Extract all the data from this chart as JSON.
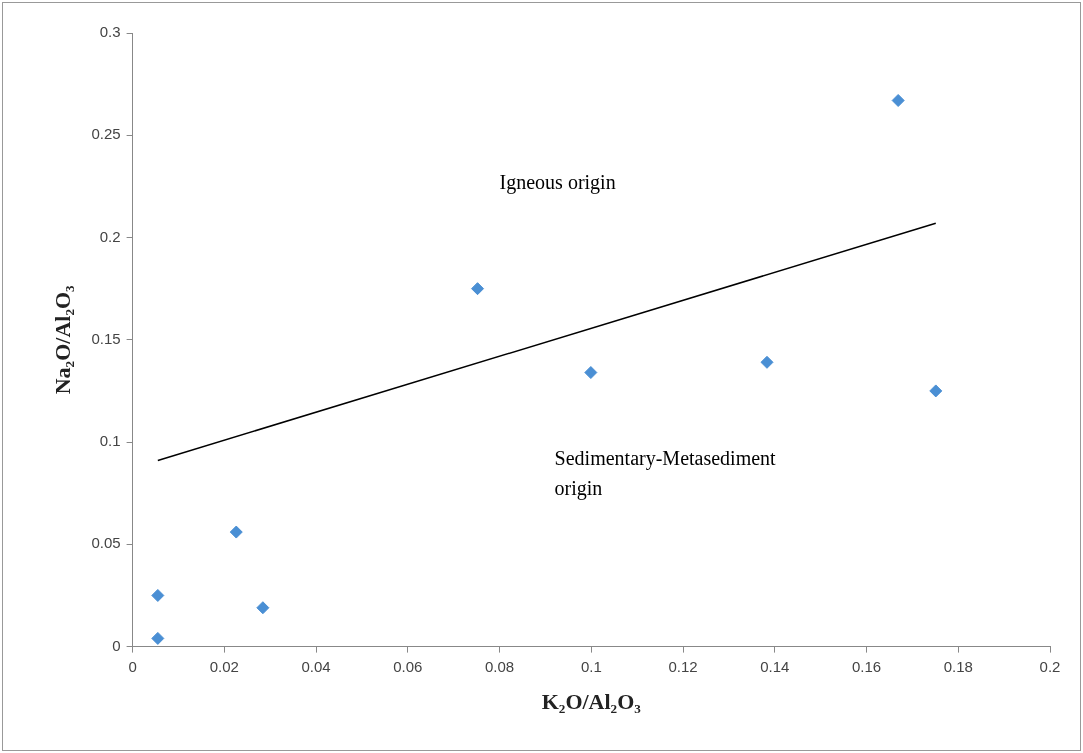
{
  "chart_data": {
    "type": "scatter",
    "xlabel": "K₂O/Al₂O₃",
    "ylabel": "Na₂O/Al₂O₃",
    "series": [
      {
        "color": "#4a8fd4",
        "marker": "diamond",
        "x": [
          0.0055,
          0.0055,
          0.0226,
          0.0284,
          0.0752,
          0.0999,
          0.1383,
          0.1669,
          0.1751
        ],
        "values": [
          0.025,
          0.004,
          0.056,
          0.019,
          0.175,
          0.134,
          0.139,
          0.267,
          0.125
        ]
      },
      {
        "type": "line",
        "marker": "none",
        "color": "#000000",
        "x": [
          0.0055,
          0.1751
        ],
        "values": [
          0.091,
          0.207
        ]
      }
    ],
    "xlim": [
      0,
      0.2
    ],
    "xticks": [
      0,
      0.02,
      0.04,
      0.06,
      0.08,
      0.1,
      0.12,
      0.14,
      0.16,
      0.18,
      0.2
    ],
    "ylim": [
      0,
      0.3
    ],
    "yticks": [
      0,
      0.05,
      0.1,
      0.15,
      0.2,
      0.25,
      0.3
    ],
    "annotations": [
      "Igneous origin",
      "Sedimentary-Metasediment origin"
    ],
    "grid": false,
    "legend": false
  }
}
